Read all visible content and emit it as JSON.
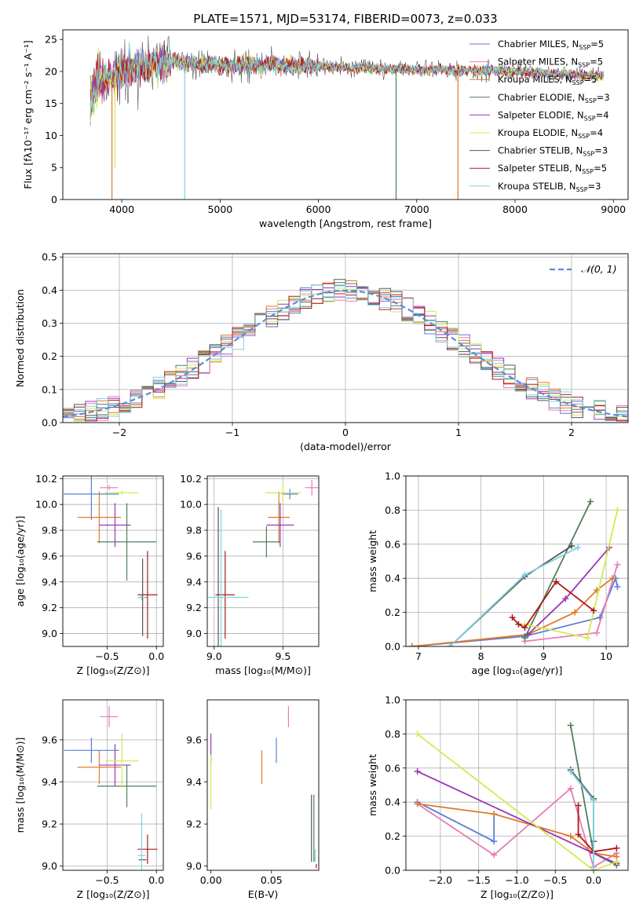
{
  "figure_title": "PLATE=1571, MJD=53174, FIBERID=0073, z=0.033",
  "colors": {
    "chabrier_miles": "#5b7fd6",
    "salpeter_miles": "#e77bb8",
    "kroupa_miles": "#e07b2a",
    "chabrier_elodie": "#4f7f5c",
    "salpeter_elodie": "#9b35b5",
    "kroupa_elodie": "#d2ea50",
    "chabrier_stelib": "#555555",
    "salpeter_stelib": "#b01818",
    "kroupa_stelib": "#7fd3dd",
    "normal": "#5b8bd6",
    "grid": "#b0b0b0"
  },
  "chart_data": [
    {
      "id": "spectrum",
      "type": "line",
      "xlabel": "wavelength [Angstrom, rest frame]",
      "ylabel": "Flux [fλ10⁻¹⁷ erg cm⁻² s⁻¹ A⁻¹]",
      "xlim": [
        3400,
        9150
      ],
      "ylim": [
        0,
        26.5
      ],
      "xticks": [
        4000,
        5000,
        6000,
        7000,
        8000,
        9000
      ],
      "yticks": [
        0,
        5,
        10,
        15,
        20,
        25
      ],
      "grid": false,
      "legend_placement": "upper-right",
      "series": [
        {
          "name": "Chabrier MILES, N_SSP=5"
        },
        {
          "name": "Salpeter MILES, N_SSP=5"
        },
        {
          "name": "Kroupa MILES, N_SSP=5"
        },
        {
          "name": "Chabrier ELODIE, N_SSP=3"
        },
        {
          "name": "Salpeter ELODIE, N_SSP=4"
        },
        {
          "name": "Kroupa ELODIE, N_SSP=4"
        },
        {
          "name": "Chabrier STELIB, N_SSP=3"
        },
        {
          "name": "Salpeter STELIB, N_SSP=5"
        },
        {
          "name": "Kroupa STELIB, N_SSP=3"
        }
      ],
      "data_range": [
        3680,
        8900
      ],
      "level": [
        [
          3680,
          14
        ],
        [
          3760,
          18
        ],
        [
          3900,
          19
        ],
        [
          4000,
          20
        ],
        [
          4200,
          21
        ],
        [
          4500,
          21.5
        ],
        [
          5000,
          21
        ],
        [
          5500,
          21
        ],
        [
          6000,
          20.8
        ],
        [
          6500,
          20.5
        ],
        [
          7000,
          20.3
        ],
        [
          7500,
          20.2
        ],
        [
          8000,
          20
        ],
        [
          8500,
          19.6
        ],
        [
          8900,
          19.3
        ]
      ],
      "drops": [
        {
          "series": 2,
          "x": 3900,
          "to": 0
        },
        {
          "series": 5,
          "x": 3930,
          "to": 5
        },
        {
          "series": 8,
          "x": 4640,
          "to": 0
        },
        {
          "series": 3,
          "x": 6790,
          "to": 0
        },
        {
          "series": 2,
          "x": 7420,
          "to": 0
        }
      ]
    },
    {
      "id": "residuals",
      "type": "histogram",
      "xlabel": "(data-model)/error",
      "ylabel": "Normed distribution",
      "xlim": [
        -2.5,
        2.5
      ],
      "ylim": [
        0,
        0.51
      ],
      "xticks": [
        -2,
        -1,
        0,
        1,
        2
      ],
      "yticks": [
        0.0,
        0.1,
        0.2,
        0.3,
        0.4,
        0.5
      ],
      "grid": true,
      "legend_placement": "upper-right",
      "reference": {
        "name": "𝒩(0, 1)",
        "mean": 0,
        "sigma": 1
      },
      "bin_width": 0.1
    },
    {
      "id": "z-age",
      "type": "errorbar",
      "xlabel": "Z [log₁₀(Z/Z⊙)]",
      "ylabel": "age  [log₁₀(age/yr)]",
      "xlim": [
        -0.95,
        0.07
      ],
      "ylim": [
        8.9,
        10.22
      ],
      "xticks": [
        -0.5,
        0.0
      ],
      "yticks": [
        9.0,
        9.2,
        9.4,
        9.6,
        9.8,
        10.0,
        10.2
      ],
      "grid": true,
      "points": [
        {
          "series": 0,
          "x": -0.66,
          "y": 10.08,
          "xerr": 0.28,
          "yerr": 0.2
        },
        {
          "series": 1,
          "x": -0.48,
          "y": 10.13,
          "xerr": 0.09,
          "yerr": 0.02
        },
        {
          "series": 2,
          "x": -0.58,
          "y": 9.9,
          "xerr": 0.22,
          "yerr": 0.2
        },
        {
          "series": 3,
          "x": -0.3,
          "y": 9.71,
          "xerr": 0.3,
          "yerr": 0.3
        },
        {
          "series": 4,
          "x": -0.42,
          "y": 9.84,
          "xerr": 0.16,
          "yerr": 0.17
        },
        {
          "series": 5,
          "x": -0.35,
          "y": 10.09,
          "xerr": 0.17,
          "yerr": 0.02
        },
        {
          "series": 6,
          "x": -0.14,
          "y": 9.28,
          "xerr": 0.04,
          "yerr": 0.3
        },
        {
          "series": 7,
          "x": -0.09,
          "y": 9.3,
          "xerr": 0.1,
          "yerr": 0.34
        },
        {
          "series": 8,
          "x": -0.15,
          "y": 9.28,
          "xerr": 0.04,
          "yerr": 0.02
        }
      ]
    },
    {
      "id": "mass-age",
      "type": "errorbar",
      "xlabel": "mass [log₁₀(M/M⊙)]",
      "ylabel": "",
      "xlim": [
        8.95,
        9.76
      ],
      "ylim": [
        8.9,
        10.22
      ],
      "xticks": [
        9.0,
        9.5
      ],
      "yticks": [
        9.0,
        9.2,
        9.4,
        9.6,
        9.8,
        10.0,
        10.2
      ],
      "grid": true,
      "points": [
        {
          "series": 0,
          "x": 9.55,
          "y": 10.08,
          "xerr": 0.06,
          "yerr": 0.04
        },
        {
          "series": 1,
          "x": 9.71,
          "y": 10.13,
          "xerr": 0.05,
          "yerr": 0.06
        },
        {
          "series": 2,
          "x": 9.47,
          "y": 9.9,
          "xerr": 0.08,
          "yerr": 0.2
        },
        {
          "series": 3,
          "x": 9.38,
          "y": 9.71,
          "xerr": 0.1,
          "yerr": 0.12
        },
        {
          "series": 4,
          "x": 9.48,
          "y": 9.84,
          "xerr": 0.1,
          "yerr": 0.17
        },
        {
          "series": 5,
          "x": 9.5,
          "y": 10.09,
          "xerr": 0.13,
          "yerr": 0.08
        },
        {
          "series": 6,
          "x": 9.03,
          "y": 9.28,
          "xerr": 0.0,
          "yerr": 0.7
        },
        {
          "series": 7,
          "x": 9.08,
          "y": 9.3,
          "xerr": 0.07,
          "yerr": 0.34
        },
        {
          "series": 8,
          "x": 9.05,
          "y": 9.28,
          "xerr": 0.2,
          "yerr": 0.68
        }
      ]
    },
    {
      "id": "cumulative-age",
      "type": "line",
      "xlabel": "age  [log₁₀(age/yr)]",
      "ylabel": "mass weight",
      "xlim": [
        6.8,
        10.35
      ],
      "ylim": [
        0,
        1
      ],
      "xticks": [
        7,
        8,
        9,
        10
      ],
      "yticks": [
        0.0,
        0.2,
        0.4,
        0.6,
        0.8,
        1.0
      ],
      "grid": true,
      "series": [
        {
          "series": 0,
          "x": [
            6.9,
            8.7,
            9.9,
            10.15,
            10.18
          ],
          "y": [
            0.0,
            0.06,
            0.17,
            0.4,
            0.35
          ]
        },
        {
          "series": 1,
          "x": [
            8.7,
            9.85,
            10.18
          ],
          "y": [
            0.03,
            0.08,
            0.48
          ]
        },
        {
          "series": 2,
          "x": [
            6.9,
            8.75,
            9.5,
            9.85,
            10.1
          ],
          "y": [
            0.0,
            0.07,
            0.2,
            0.33,
            0.4
          ]
        },
        {
          "series": 3,
          "x": [
            8.7,
            9.75
          ],
          "y": [
            0.05,
            0.85
          ]
        },
        {
          "series": 4,
          "x": [
            8.75,
            9.35,
            10.05
          ],
          "y": [
            0.07,
            0.28,
            0.58
          ]
        },
        {
          "series": 5,
          "x": [
            8.7,
            9.7,
            10.18
          ],
          "y": [
            0.13,
            0.05,
            0.8
          ]
        },
        {
          "series": 6,
          "x": [
            7.5,
            8.7,
            9.45
          ],
          "y": [
            0.0,
            0.41,
            0.59
          ]
        },
        {
          "series": 7,
          "x": [
            8.5,
            8.6,
            8.7,
            9.2,
            9.8
          ],
          "y": [
            0.17,
            0.13,
            0.11,
            0.38,
            0.21
          ]
        },
        {
          "series": 8,
          "x": [
            7.5,
            8.7,
            9.55
          ],
          "y": [
            0.0,
            0.42,
            0.58
          ]
        }
      ]
    },
    {
      "id": "z-mass",
      "type": "errorbar",
      "xlabel": "Z [log₁₀(Z/Z⊙)]",
      "ylabel": "mass [log₁₀(M/M⊙)]",
      "xlim": [
        -0.95,
        0.07
      ],
      "ylim": [
        8.98,
        9.79
      ],
      "xticks": [
        -0.5,
        0.0
      ],
      "yticks": [
        9.0,
        9.2,
        9.4,
        9.6
      ],
      "grid": true,
      "points": [
        {
          "series": 0,
          "x": -0.66,
          "y": 9.55,
          "xerr": 0.28,
          "yerr": 0.06
        },
        {
          "series": 1,
          "x": -0.48,
          "y": 9.71,
          "xerr": 0.09,
          "yerr": 0.05
        },
        {
          "series": 2,
          "x": -0.58,
          "y": 9.47,
          "xerr": 0.22,
          "yerr": 0.08
        },
        {
          "series": 3,
          "x": -0.3,
          "y": 9.38,
          "xerr": 0.3,
          "yerr": 0.1
        },
        {
          "series": 4,
          "x": -0.42,
          "y": 9.48,
          "xerr": 0.16,
          "yerr": 0.1
        },
        {
          "series": 5,
          "x": -0.35,
          "y": 9.5,
          "xerr": 0.17,
          "yerr": 0.13
        },
        {
          "series": 6,
          "x": -0.14,
          "y": 9.03,
          "xerr": 0.04,
          "yerr": 0.0
        },
        {
          "series": 7,
          "x": -0.09,
          "y": 9.08,
          "xerr": 0.1,
          "yerr": 0.07
        },
        {
          "series": 8,
          "x": -0.15,
          "y": 9.05,
          "xerr": 0.04,
          "yerr": 0.2
        }
      ]
    },
    {
      "id": "ebv-mass",
      "type": "errorbar",
      "xlabel": "E(B-V)",
      "ylabel": "",
      "xlim": [
        -0.003,
        0.089
      ],
      "ylim": [
        8.98,
        9.79
      ],
      "xticks": [
        0.0,
        0.05
      ],
      "yticks": [
        9.0,
        9.2,
        9.4,
        9.6
      ],
      "grid": false,
      "points": [
        {
          "series": 0,
          "x": 0.054,
          "y": 9.55,
          "xerr": 0.0,
          "yerr": 0.06
        },
        {
          "series": 1,
          "x": 0.064,
          "y": 9.71,
          "xerr": 0.0,
          "yerr": 0.05
        },
        {
          "series": 2,
          "x": 0.042,
          "y": 9.47,
          "xerr": 0.0,
          "yerr": 0.08
        },
        {
          "series": 3,
          "x": 0.085,
          "y": 9.18,
          "xerr": 0.0,
          "yerr": 0.16
        },
        {
          "series": 4,
          "x": 0.0,
          "y": 9.56,
          "xerr": 0.0,
          "yerr": 0.07
        },
        {
          "series": 5,
          "x": 0.0,
          "y": 9.4,
          "xerr": 0.0,
          "yerr": 0.13
        },
        {
          "series": 6,
          "x": 0.083,
          "y": 9.18,
          "xerr": 0.0,
          "yerr": 0.16
        },
        {
          "series": 7,
          "x": 0.087,
          "y": 9.0,
          "xerr": 0.0,
          "yerr": 0.01
        },
        {
          "series": 8,
          "x": 0.086,
          "y": 9.05,
          "xerr": 0.0,
          "yerr": 0.03
        }
      ]
    },
    {
      "id": "cumulative-z",
      "type": "line",
      "xlabel": "Z [log₁₀(Z/Z⊙)]",
      "ylabel": "mass weight",
      "xlim": [
        -2.45,
        0.45
      ],
      "ylim": [
        0,
        1
      ],
      "xticks": [
        -2.0,
        -1.5,
        -1.0,
        -0.5,
        0.0
      ],
      "yticks": [
        0.0,
        0.2,
        0.4,
        0.6,
        0.8,
        1.0
      ],
      "grid": true,
      "series": [
        {
          "series": 0,
          "x": [
            -2.3,
            -1.3,
            -1.3
          ],
          "y": [
            0.4,
            0.17,
            0.33
          ]
        },
        {
          "series": 1,
          "x": [
            -2.3,
            -1.3,
            -0.3,
            0.0,
            0.3,
            0.3
          ],
          "y": [
            0.39,
            0.09,
            0.48,
            0.02,
            0.1,
            0.05
          ]
        },
        {
          "series": 2,
          "x": [
            -2.3,
            -1.3,
            -0.3,
            0.0,
            0.3
          ],
          "y": [
            0.39,
            0.33,
            0.2,
            0.1,
            0.08
          ]
        },
        {
          "series": 3,
          "x": [
            -0.3,
            0.0,
            0.3
          ],
          "y": [
            0.85,
            0.1,
            0.03
          ]
        },
        {
          "series": 4,
          "x": [
            -2.3,
            0.0,
            0.3
          ],
          "y": [
            0.58,
            0.1,
            0.04
          ]
        },
        {
          "series": 5,
          "x": [
            -2.3,
            0.0,
            0.3
          ],
          "y": [
            0.8,
            0.0,
            0.05
          ]
        },
        {
          "series": 6,
          "x": [
            -0.3,
            0.0,
            0.0
          ],
          "y": [
            0.59,
            0.42,
            0.17
          ]
        },
        {
          "series": 7,
          "x": [
            -0.2,
            -0.2,
            0.0,
            0.3
          ],
          "y": [
            0.38,
            0.21,
            0.11,
            0.13
          ]
        },
        {
          "series": 8,
          "x": [
            -0.3,
            0.0,
            0.0
          ],
          "y": [
            0.58,
            0.41,
            0.0
          ]
        }
      ]
    }
  ]
}
